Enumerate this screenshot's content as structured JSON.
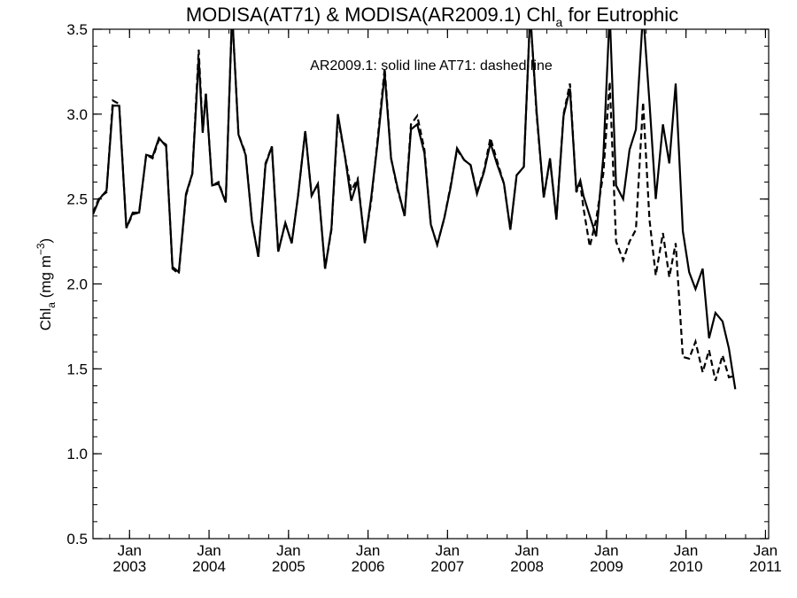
{
  "chart_data": {
    "type": "line",
    "title": {
      "main": "MODISA(AT71) & MODISA(AR2009.1)  Chl",
      "sub": "a",
      "suffix": " for Eutrophic"
    },
    "ylabel": {
      "main": "Chl",
      "sub": "a",
      "unit_open": " (mg m",
      "unit_sup": "−3",
      "unit_close": ")"
    },
    "annotation": "AR2009.1: solid line   AT71: dashed line",
    "x_unit": "year (decimal)",
    "xlim": [
      2002.54,
      2011.04
    ],
    "ylim": [
      0.5,
      3.5
    ],
    "grid": false,
    "y_ticks": [
      "0.5",
      "1.0",
      "1.5",
      "2.0",
      "2.5",
      "3.0",
      "3.5"
    ],
    "x_ticks": [
      {
        "month": "Jan",
        "year": "2003",
        "x": 2003.0
      },
      {
        "month": "Jan",
        "year": "2004",
        "x": 2004.0
      },
      {
        "month": "Jan",
        "year": "2005",
        "x": 2005.0
      },
      {
        "month": "Jan",
        "year": "2006",
        "x": 2006.0
      },
      {
        "month": "Jan",
        "year": "2007",
        "x": 2007.0
      },
      {
        "month": "Jan",
        "year": "2008",
        "x": 2008.0
      },
      {
        "month": "Jan",
        "year": "2009",
        "x": 2009.0
      },
      {
        "month": "Jan",
        "year": "2010",
        "x": 2010.0
      },
      {
        "month": "Jan",
        "year": "2011",
        "x": 2011.0
      }
    ],
    "series": [
      {
        "name": "AR2009.1",
        "style": "solid",
        "color": "#000000",
        "points": [
          [
            2002.54,
            2.41
          ],
          [
            2002.62,
            2.5
          ],
          [
            2002.71,
            2.55
          ],
          [
            2002.79,
            3.05
          ],
          [
            2002.87,
            3.05
          ],
          [
            2002.96,
            2.33
          ],
          [
            2003.04,
            2.42
          ],
          [
            2003.12,
            2.42
          ],
          [
            2003.21,
            2.76
          ],
          [
            2003.29,
            2.75
          ],
          [
            2003.37,
            2.86
          ],
          [
            2003.46,
            2.81
          ],
          [
            2003.54,
            2.1
          ],
          [
            2003.62,
            2.07
          ],
          [
            2003.71,
            2.53
          ],
          [
            2003.79,
            2.65
          ],
          [
            2003.87,
            3.33
          ],
          [
            2003.92,
            2.89
          ],
          [
            2003.96,
            3.12
          ],
          [
            2004.04,
            2.58
          ],
          [
            2004.12,
            2.59
          ],
          [
            2004.21,
            2.48
          ],
          [
            2004.29,
            3.6
          ],
          [
            2004.37,
            2.88
          ],
          [
            2004.46,
            2.76
          ],
          [
            2004.54,
            2.37
          ],
          [
            2004.62,
            2.16
          ],
          [
            2004.71,
            2.7
          ],
          [
            2004.79,
            2.81
          ],
          [
            2004.87,
            2.19
          ],
          [
            2004.96,
            2.36
          ],
          [
            2005.04,
            2.24
          ],
          [
            2005.12,
            2.52
          ],
          [
            2005.21,
            2.9
          ],
          [
            2005.29,
            2.52
          ],
          [
            2005.37,
            2.59
          ],
          [
            2005.46,
            2.09
          ],
          [
            2005.54,
            2.33
          ],
          [
            2005.62,
            3.0
          ],
          [
            2005.71,
            2.75
          ],
          [
            2005.79,
            2.49
          ],
          [
            2005.87,
            2.61
          ],
          [
            2005.96,
            2.24
          ],
          [
            2006.04,
            2.51
          ],
          [
            2006.12,
            2.83
          ],
          [
            2006.21,
            3.24
          ],
          [
            2006.29,
            2.74
          ],
          [
            2006.37,
            2.57
          ],
          [
            2006.46,
            2.4
          ],
          [
            2006.54,
            2.91
          ],
          [
            2006.62,
            2.94
          ],
          [
            2006.71,
            2.77
          ],
          [
            2006.79,
            2.35
          ],
          [
            2006.87,
            2.23
          ],
          [
            2006.96,
            2.39
          ],
          [
            2007.04,
            2.57
          ],
          [
            2007.12,
            2.8
          ],
          [
            2007.21,
            2.73
          ],
          [
            2007.29,
            2.7
          ],
          [
            2007.37,
            2.53
          ],
          [
            2007.46,
            2.66
          ],
          [
            2007.54,
            2.83
          ],
          [
            2007.62,
            2.71
          ],
          [
            2007.71,
            2.59
          ],
          [
            2007.79,
            2.32
          ],
          [
            2007.87,
            2.64
          ],
          [
            2007.96,
            2.69
          ],
          [
            2008.04,
            3.6
          ],
          [
            2008.12,
            3.02
          ],
          [
            2008.21,
            2.51
          ],
          [
            2008.29,
            2.74
          ],
          [
            2008.37,
            2.38
          ],
          [
            2008.46,
            2.99
          ],
          [
            2008.54,
            3.15
          ],
          [
            2008.62,
            2.55
          ],
          [
            2008.67,
            2.61
          ],
          [
            2008.71,
            2.52
          ],
          [
            2008.79,
            2.4
          ],
          [
            2008.87,
            2.28
          ],
          [
            2008.96,
            2.75
          ],
          [
            2009.04,
            3.6
          ],
          [
            2009.12,
            2.58
          ],
          [
            2009.21,
            2.5
          ],
          [
            2009.29,
            2.79
          ],
          [
            2009.37,
            2.91
          ],
          [
            2009.46,
            3.6
          ],
          [
            2009.54,
            3.07
          ],
          [
            2009.62,
            2.5
          ],
          [
            2009.71,
            2.94
          ],
          [
            2009.79,
            2.71
          ],
          [
            2009.87,
            3.18
          ],
          [
            2009.96,
            2.31
          ],
          [
            2010.04,
            2.07
          ],
          [
            2010.12,
            1.97
          ],
          [
            2010.21,
            2.09
          ],
          [
            2010.29,
            1.68
          ],
          [
            2010.37,
            1.83
          ],
          [
            2010.46,
            1.78
          ],
          [
            2010.54,
            1.62
          ],
          [
            2010.62,
            1.38
          ]
        ]
      },
      {
        "name": "AT71",
        "style": "dashed",
        "color": "#000000",
        "points": [
          [
            2002.54,
            2.42
          ],
          [
            2002.62,
            2.51
          ],
          [
            2002.71,
            2.54
          ],
          [
            2002.79,
            3.08
          ],
          [
            2002.87,
            3.06
          ],
          [
            2002.96,
            2.33
          ],
          [
            2003.04,
            2.41
          ],
          [
            2003.12,
            2.42
          ],
          [
            2003.21,
            2.76
          ],
          [
            2003.29,
            2.74
          ],
          [
            2003.37,
            2.85
          ],
          [
            2003.46,
            2.82
          ],
          [
            2003.54,
            2.09
          ],
          [
            2003.62,
            2.06
          ],
          [
            2003.71,
            2.52
          ],
          [
            2003.79,
            2.65
          ],
          [
            2003.87,
            3.38
          ],
          [
            2003.92,
            2.9
          ],
          [
            2003.96,
            3.12
          ],
          [
            2004.04,
            2.58
          ],
          [
            2004.12,
            2.6
          ],
          [
            2004.21,
            2.48
          ],
          [
            2004.29,
            3.6
          ],
          [
            2004.37,
            2.88
          ],
          [
            2004.46,
            2.77
          ],
          [
            2004.54,
            2.37
          ],
          [
            2004.62,
            2.16
          ],
          [
            2004.71,
            2.71
          ],
          [
            2004.79,
            2.81
          ],
          [
            2004.87,
            2.19
          ],
          [
            2004.96,
            2.36
          ],
          [
            2005.04,
            2.24
          ],
          [
            2005.12,
            2.52
          ],
          [
            2005.21,
            2.9
          ],
          [
            2005.29,
            2.52
          ],
          [
            2005.37,
            2.59
          ],
          [
            2005.46,
            2.09
          ],
          [
            2005.54,
            2.32
          ],
          [
            2005.62,
            2.98
          ],
          [
            2005.71,
            2.75
          ],
          [
            2005.79,
            2.55
          ],
          [
            2005.87,
            2.62
          ],
          [
            2005.96,
            2.24
          ],
          [
            2006.04,
            2.49
          ],
          [
            2006.12,
            2.85
          ],
          [
            2006.21,
            3.27
          ],
          [
            2006.29,
            2.74
          ],
          [
            2006.37,
            2.56
          ],
          [
            2006.46,
            2.4
          ],
          [
            2006.54,
            2.94
          ],
          [
            2006.62,
            2.99
          ],
          [
            2006.71,
            2.79
          ],
          [
            2006.79,
            2.35
          ],
          [
            2006.87,
            2.23
          ],
          [
            2006.96,
            2.39
          ],
          [
            2007.04,
            2.58
          ],
          [
            2007.12,
            2.79
          ],
          [
            2007.21,
            2.73
          ],
          [
            2007.29,
            2.7
          ],
          [
            2007.37,
            2.54
          ],
          [
            2007.46,
            2.67
          ],
          [
            2007.54,
            2.86
          ],
          [
            2007.62,
            2.73
          ],
          [
            2007.71,
            2.59
          ],
          [
            2007.79,
            2.32
          ],
          [
            2007.87,
            2.64
          ],
          [
            2007.96,
            2.69
          ],
          [
            2008.04,
            3.6
          ],
          [
            2008.12,
            3.0
          ],
          [
            2008.21,
            2.51
          ],
          [
            2008.29,
            2.73
          ],
          [
            2008.37,
            2.38
          ],
          [
            2008.46,
            3.0
          ],
          [
            2008.54,
            3.18
          ],
          [
            2008.62,
            2.54
          ],
          [
            2008.67,
            2.59
          ],
          [
            2008.71,
            2.45
          ],
          [
            2008.79,
            2.22
          ],
          [
            2008.87,
            2.38
          ],
          [
            2008.96,
            2.65
          ],
          [
            2009.04,
            3.19
          ],
          [
            2009.12,
            2.25
          ],
          [
            2009.21,
            2.14
          ],
          [
            2009.29,
            2.25
          ],
          [
            2009.37,
            2.32
          ],
          [
            2009.46,
            3.07
          ],
          [
            2009.54,
            2.38
          ],
          [
            2009.62,
            2.05
          ],
          [
            2009.71,
            2.3
          ],
          [
            2009.79,
            2.04
          ],
          [
            2009.87,
            2.24
          ],
          [
            2009.96,
            1.57
          ],
          [
            2010.04,
            1.56
          ],
          [
            2010.12,
            1.66
          ],
          [
            2010.21,
            1.48
          ],
          [
            2010.29,
            1.61
          ],
          [
            2010.37,
            1.43
          ],
          [
            2010.46,
            1.58
          ],
          [
            2010.54,
            1.45
          ],
          [
            2010.62,
            1.46
          ]
        ]
      }
    ]
  }
}
